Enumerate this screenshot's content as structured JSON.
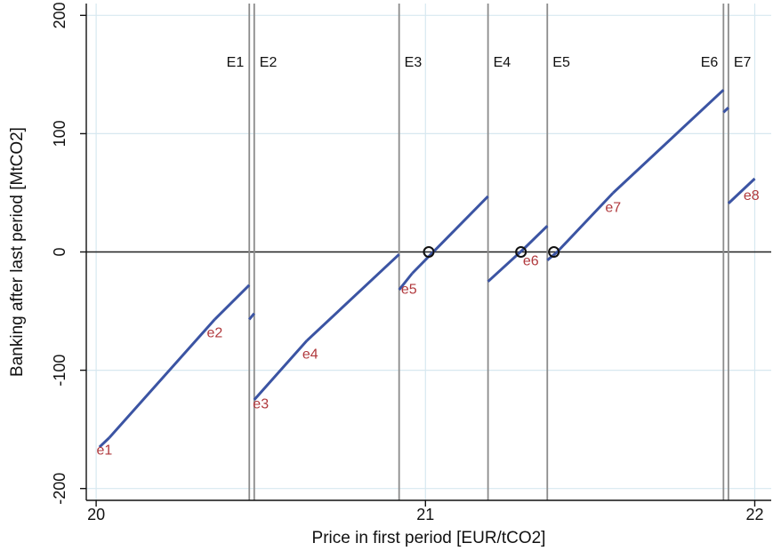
{
  "chart_data": {
    "type": "line",
    "xlabel": "Price in first period [EUR/tCO2]",
    "ylabel": "Banking after last period [MtCO2]",
    "xlim": [
      19.97,
      22.05
    ],
    "ylim": [
      -210,
      210
    ],
    "xticks": [
      20,
      21,
      22
    ],
    "xtick_labels": [
      "20",
      "21",
      "22"
    ],
    "yticks": [
      -200,
      -100,
      0,
      100,
      200
    ],
    "ytick_labels": [
      "-200",
      "-100",
      "0",
      "100",
      "200"
    ],
    "grid": true,
    "zero_line": true,
    "colors": {
      "line": "#3b54a3",
      "segment_label": "#b0383c",
      "event_line": "#8c8c8c",
      "grid": "#d7e8f0"
    },
    "events": [
      {
        "label": "E1",
        "x": 20.465
      },
      {
        "label": "E2",
        "x": 20.48
      },
      {
        "label": "E3",
        "x": 20.92
      },
      {
        "label": "E4",
        "x": 21.19
      },
      {
        "label": "E5",
        "x": 21.37
      },
      {
        "label": "E6",
        "x": 21.905
      },
      {
        "label": "E7",
        "x": 21.92
      }
    ],
    "series": [
      {
        "x": [
          20.01,
          20.04
        ],
        "y": [
          -165,
          -157
        ]
      },
      {
        "x": [
          20.04,
          20.36
        ],
        "y": [
          -157,
          -57
        ]
      },
      {
        "x": [
          20.36,
          20.465
        ],
        "y": [
          -57,
          -28
        ]
      },
      {
        "x": [
          20.465,
          20.48
        ],
        "y": [
          -57,
          -52
        ]
      },
      {
        "x": [
          20.48,
          20.64
        ],
        "y": [
          -125,
          -75
        ]
      },
      {
        "x": [
          20.64,
          20.92
        ],
        "y": [
          -75,
          -2
        ]
      },
      {
        "x": [
          20.92,
          20.96
        ],
        "y": [
          -32,
          -18
        ]
      },
      {
        "x": [
          20.96,
          21.19
        ],
        "y": [
          -18,
          47
        ]
      },
      {
        "x": [
          21.19,
          21.3
        ],
        "y": [
          -25,
          3
        ]
      },
      {
        "x": [
          21.3,
          21.37
        ],
        "y": [
          3,
          22
        ]
      },
      {
        "x": [
          21.37,
          21.4
        ],
        "y": [
          -7,
          0
        ]
      },
      {
        "x": [
          21.4,
          21.57
        ],
        "y": [
          0,
          50
        ]
      },
      {
        "x": [
          21.57,
          21.905
        ],
        "y": [
          50,
          137
        ]
      },
      {
        "x": [
          21.905,
          21.92
        ],
        "y": [
          118,
          122
        ]
      },
      {
        "x": [
          21.92,
          22.0
        ],
        "y": [
          41,
          62
        ]
      }
    ],
    "segment_labels": [
      {
        "text": "e1",
        "x": 20.025,
        "y": -168
      },
      {
        "text": "e2",
        "x": 20.36,
        "y": -69
      },
      {
        "text": "e3",
        "x": 20.5,
        "y": -129
      },
      {
        "text": "e4",
        "x": 20.65,
        "y": -87
      },
      {
        "text": "e5",
        "x": 20.95,
        "y": -32
      },
      {
        "text": "e6",
        "x": 21.32,
        "y": -8
      },
      {
        "text": "e7",
        "x": 21.57,
        "y": 37
      },
      {
        "text": "e8",
        "x": 21.99,
        "y": 47
      }
    ],
    "equilibria": [
      {
        "x": 21.01,
        "y": 0
      },
      {
        "x": 21.29,
        "y": 0
      },
      {
        "x": 21.39,
        "y": 0
      }
    ]
  }
}
